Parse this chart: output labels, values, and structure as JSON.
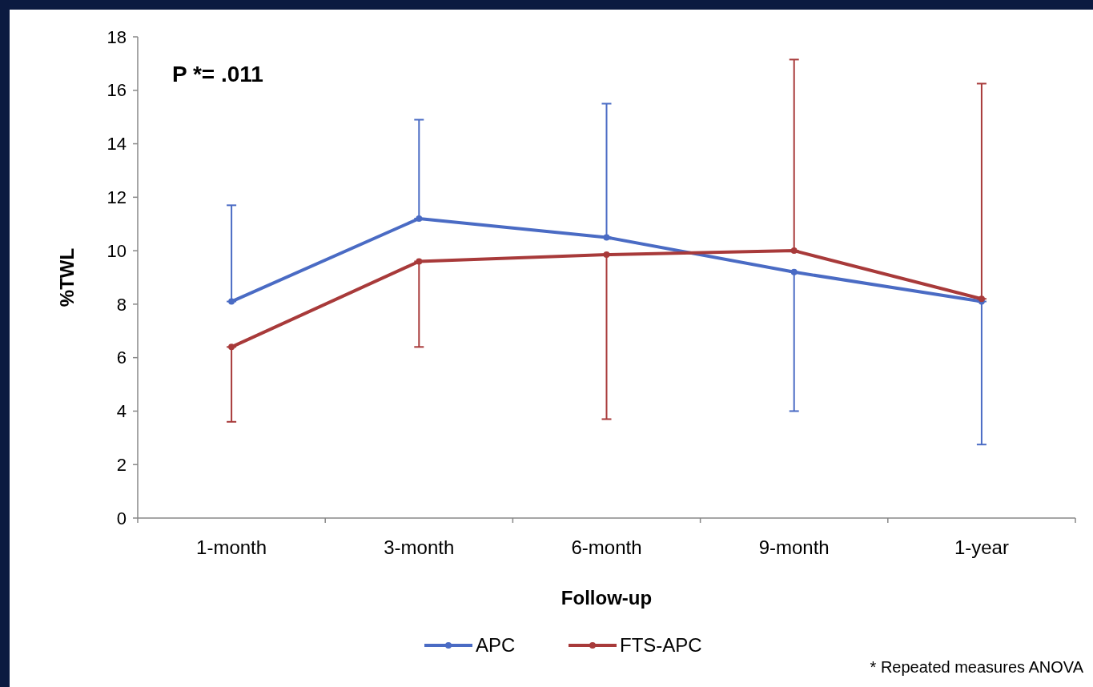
{
  "chart_data": {
    "type": "line",
    "xlabel": "Follow-up",
    "ylabel": "%TWL",
    "categories": [
      "1-month",
      "3-month",
      "6-month",
      "9-month",
      "1-year"
    ],
    "series": [
      {
        "name": "APC",
        "color": "#4a6bc4",
        "values": [
          8.1,
          11.2,
          10.5,
          9.2,
          8.1
        ],
        "errors": [
          [
            8.1,
            11.7
          ],
          [
            11.2,
            14.9
          ],
          [
            10.5,
            15.5
          ],
          [
            4.0,
            9.2
          ],
          [
            2.75,
            8.1
          ]
        ]
      },
      {
        "name": "FTS-APC",
        "color": "#a83a3a",
        "values": [
          6.4,
          9.6,
          9.85,
          10.0,
          8.2
        ],
        "errors": [
          [
            3.6,
            6.4
          ],
          [
            6.4,
            9.6
          ],
          [
            3.7,
            9.85
          ],
          [
            10.0,
            17.15
          ],
          [
            8.2,
            16.25
          ]
        ]
      }
    ],
    "ylim": [
      0,
      18
    ],
    "yticks": [
      0,
      2,
      4,
      6,
      8,
      10,
      12,
      14,
      16,
      18
    ],
    "legend": "bottom",
    "marker": "circle",
    "line_style": "solid",
    "grid": false,
    "annotations": [
      "P *= .011",
      "* Repeated measures ANOVA"
    ]
  }
}
